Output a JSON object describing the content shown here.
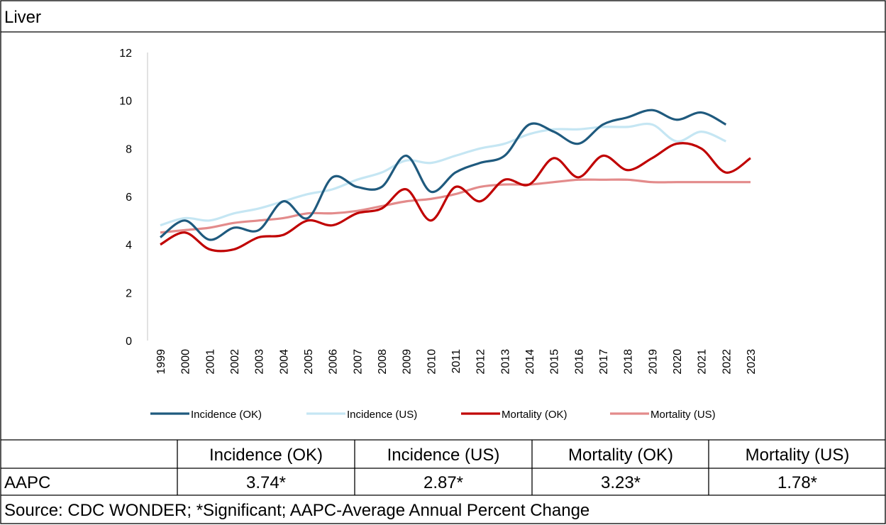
{
  "title": "Liver",
  "chart_data": {
    "type": "line",
    "categories": [
      "1999",
      "2000",
      "2001",
      "2002",
      "2003",
      "2004",
      "2005",
      "2006",
      "2007",
      "2008",
      "2009",
      "2010",
      "2011",
      "2012",
      "2013",
      "2014",
      "2015",
      "2016",
      "2017",
      "2018",
      "2019",
      "2020",
      "2021",
      "2022",
      "2023"
    ],
    "series": [
      {
        "name": "Incidence (OK)",
        "color": "#1f5a7e",
        "values": [
          4.3,
          5.0,
          4.2,
          4.7,
          4.6,
          5.8,
          5.1,
          6.8,
          6.4,
          6.4,
          7.7,
          6.2,
          7.0,
          7.4,
          7.7,
          9.0,
          8.7,
          8.2,
          9.0,
          9.3,
          9.6,
          9.2,
          9.5,
          9.0,
          null
        ]
      },
      {
        "name": "Incidence (US)",
        "color": "#c5e6f3",
        "values": [
          4.8,
          5.1,
          5.0,
          5.3,
          5.5,
          5.8,
          6.1,
          6.3,
          6.7,
          7.0,
          7.5,
          7.4,
          7.7,
          8.0,
          8.2,
          8.6,
          8.8,
          8.8,
          8.9,
          8.9,
          9.0,
          8.3,
          8.7,
          8.3,
          null
        ]
      },
      {
        "name": "Mortality (OK)",
        "color": "#c00000",
        "values": [
          4.0,
          4.5,
          3.8,
          3.8,
          4.3,
          4.4,
          5.0,
          4.8,
          5.3,
          5.5,
          6.3,
          5.0,
          6.4,
          5.8,
          6.7,
          6.5,
          7.6,
          6.8,
          7.7,
          7.1,
          7.6,
          8.2,
          8.0,
          7.0,
          7.6
        ]
      },
      {
        "name": "Mortality (US)",
        "color": "#e38b8b",
        "values": [
          4.5,
          4.6,
          4.7,
          4.9,
          5.0,
          5.1,
          5.3,
          5.3,
          5.4,
          5.6,
          5.8,
          5.9,
          6.1,
          6.4,
          6.5,
          6.5,
          6.6,
          6.7,
          6.7,
          6.7,
          6.6,
          6.6,
          6.6,
          6.6,
          6.6
        ]
      }
    ],
    "ylim": [
      0,
      12
    ],
    "yticks": [
      0,
      2,
      4,
      6,
      8,
      10,
      12
    ],
    "grid": false,
    "legend": "bottom"
  },
  "table": {
    "columns": [
      "Incidence (OK)",
      "Incidence (US)",
      "Mortality (OK)",
      "Mortality (US)"
    ],
    "rows": [
      [
        "AAPC",
        "3.74*",
        "2.87*",
        "3.23*",
        "1.78*"
      ]
    ],
    "source": "Source: CDC WONDER; *Significant; AAPC-Average Annual Percent Change"
  }
}
